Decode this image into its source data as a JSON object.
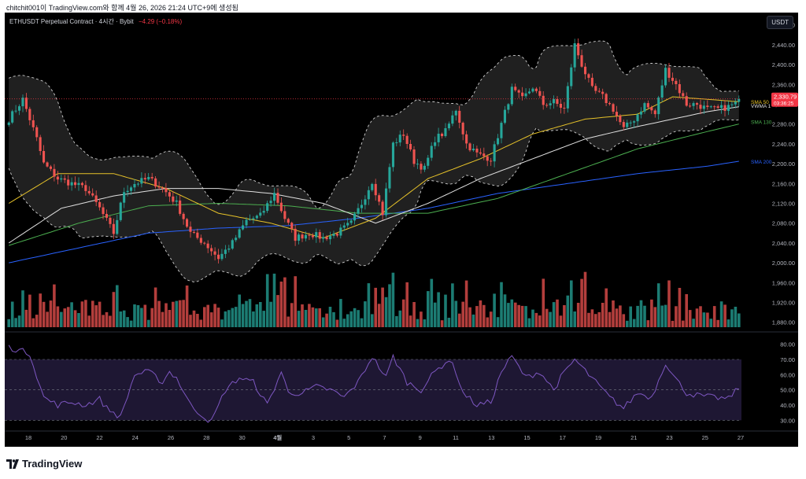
{
  "header": {
    "text": "chitchit001이 TradingView.com와 함께 4월 26, 2026 21:24 UTC+9에 생성됨"
  },
  "legend": {
    "symbol": "ETHUSDT Perpetual Contract · 4시간 · Bybit",
    "change": "−4.29 (−0.18%)"
  },
  "unit_button": "USDT",
  "footer": {
    "brand": "TradingView"
  },
  "colors": {
    "up": "#26a69a",
    "down": "#ef5350",
    "sma50": "#e6c229",
    "vwma": "#e0e0e0",
    "sma130": "#4caf50",
    "sma200": "#2962ff",
    "rsi": "#7e57c2",
    "bb": "#cfcfcf"
  },
  "chart_data": [
    {
      "type": "candlestick",
      "title": "ETHUSDT Perpetual Contract · 4시간 · Bybit",
      "x_tick_labels": [
        "18",
        "20",
        "22",
        "24",
        "26",
        "28",
        "30",
        "4월",
        "3",
        "5",
        "7",
        "9",
        "11",
        "13",
        "15",
        "17",
        "19",
        "21",
        "23",
        "25",
        "27"
      ],
      "y_tick_labels": [
        "1,880.00",
        "1,920.00",
        "1,960.00",
        "2,000.00",
        "2,040.00",
        "2,080.00",
        "2,120.00",
        "2,160.00",
        "2,200.00",
        "2,240.00",
        "2,280.00",
        "2,320.00",
        "2,360.00",
        "2,400.00",
        "2,440.00",
        "2,480.00"
      ],
      "ylim": [
        1870,
        2505
      ],
      "grid": false,
      "last_price_label": "2,330.79",
      "countdown_label": "03:36:25",
      "indicator_labels": [
        "SMA 50",
        "VWMA 1",
        "SMA 130",
        "SMA 200"
      ],
      "close_keypoints": [
        [
          0,
          2290
        ],
        [
          4,
          2330
        ],
        [
          8,
          2250
        ],
        [
          10,
          2200
        ],
        [
          14,
          2170
        ],
        [
          18,
          2160
        ],
        [
          22,
          2150
        ],
        [
          26,
          2110
        ],
        [
          30,
          2060
        ],
        [
          33,
          2145
        ],
        [
          36,
          2160
        ],
        [
          40,
          2170
        ],
        [
          44,
          2150
        ],
        [
          48,
          2120
        ],
        [
          52,
          2060
        ],
        [
          56,
          2040
        ],
        [
          60,
          2010
        ],
        [
          64,
          2040
        ],
        [
          68,
          2085
        ],
        [
          72,
          2095
        ],
        [
          76,
          2140
        ],
        [
          79,
          2090
        ],
        [
          82,
          2050
        ],
        [
          86,
          2060
        ],
        [
          90,
          2050
        ],
        [
          94,
          2060
        ],
        [
          98,
          2080
        ],
        [
          101,
          2120
        ],
        [
          104,
          2165
        ],
        [
          107,
          2100
        ],
        [
          110,
          2240
        ],
        [
          113,
          2260
        ],
        [
          116,
          2205
        ],
        [
          119,
          2190
        ],
        [
          122,
          2250
        ],
        [
          125,
          2265
        ],
        [
          128,
          2310
        ],
        [
          131,
          2240
        ],
        [
          134,
          2220
        ],
        [
          138,
          2210
        ],
        [
          141,
          2280
        ],
        [
          144,
          2350
        ],
        [
          147,
          2330
        ],
        [
          150,
          2355
        ],
        [
          153,
          2320
        ],
        [
          156,
          2325
        ],
        [
          159,
          2310
        ],
        [
          162,
          2440
        ],
        [
          164,
          2400
        ],
        [
          167,
          2350
        ],
        [
          170,
          2335
        ],
        [
          173,
          2310
        ],
        [
          176,
          2270
        ],
        [
          179,
          2290
        ],
        [
          182,
          2320
        ],
        [
          185,
          2300
        ],
        [
          188,
          2390
        ],
        [
          191,
          2360
        ],
        [
          194,
          2320
        ],
        [
          197,
          2320
        ],
        [
          200,
          2310
        ],
        [
          203,
          2310
        ],
        [
          206,
          2315
        ],
        [
          209,
          2325
        ]
      ],
      "sma50_keypoints": [
        [
          0,
          2120
        ],
        [
          14,
          2180
        ],
        [
          30,
          2180
        ],
        [
          45,
          2150
        ],
        [
          60,
          2100
        ],
        [
          75,
          2080
        ],
        [
          90,
          2050
        ],
        [
          105,
          2090
        ],
        [
          120,
          2170
        ],
        [
          135,
          2210
        ],
        [
          150,
          2260
        ],
        [
          165,
          2290
        ],
        [
          180,
          2300
        ],
        [
          190,
          2335
        ],
        [
          200,
          2330
        ],
        [
          209,
          2325
        ]
      ],
      "vwma_keypoints": [
        [
          0,
          2040
        ],
        [
          15,
          2110
        ],
        [
          30,
          2135
        ],
        [
          45,
          2150
        ],
        [
          60,
          2150
        ],
        [
          75,
          2140
        ],
        [
          90,
          2120
        ],
        [
          105,
          2080
        ],
        [
          120,
          2120
        ],
        [
          135,
          2170
        ],
        [
          150,
          2210
        ],
        [
          165,
          2250
        ],
        [
          180,
          2275
        ],
        [
          190,
          2290
        ],
        [
          200,
          2305
        ],
        [
          209,
          2315
        ]
      ],
      "sma130_keypoints": [
        [
          0,
          2035
        ],
        [
          20,
          2080
        ],
        [
          40,
          2115
        ],
        [
          60,
          2120
        ],
        [
          80,
          2115
        ],
        [
          100,
          2100
        ],
        [
          120,
          2100
        ],
        [
          140,
          2130
        ],
        [
          160,
          2180
        ],
        [
          180,
          2230
        ],
        [
          200,
          2265
        ],
        [
          209,
          2280
        ]
      ],
      "sma200_keypoints": [
        [
          0,
          2000
        ],
        [
          20,
          2030
        ],
        [
          40,
          2060
        ],
        [
          60,
          2070
        ],
        [
          80,
          2075
        ],
        [
          100,
          2090
        ],
        [
          120,
          2110
        ],
        [
          140,
          2140
        ],
        [
          160,
          2160
        ],
        [
          180,
          2180
        ],
        [
          200,
          2195
        ],
        [
          209,
          2205
        ]
      ]
    },
    {
      "type": "bar",
      "title": "Volume",
      "note": "volume histogram below price"
    },
    {
      "type": "line",
      "title": "RSI",
      "y_tick_labels": [
        "30.00",
        "40.00",
        "50.00",
        "60.00",
        "70.00",
        "80.00"
      ],
      "ylim": [
        25,
        85
      ],
      "bands": [
        30,
        50,
        70
      ],
      "rsi_keypoints": [
        [
          0,
          78
        ],
        [
          6,
          74
        ],
        [
          10,
          45
        ],
        [
          14,
          40
        ],
        [
          18,
          42
        ],
        [
          22,
          40
        ],
        [
          26,
          44
        ],
        [
          28,
          38
        ],
        [
          32,
          32
        ],
        [
          36,
          60
        ],
        [
          40,
          62
        ],
        [
          44,
          55
        ],
        [
          46,
          62
        ],
        [
          48,
          58
        ],
        [
          52,
          40
        ],
        [
          56,
          32
        ],
        [
          58,
          29
        ],
        [
          62,
          50
        ],
        [
          66,
          58
        ],
        [
          70,
          55
        ],
        [
          74,
          40
        ],
        [
          78,
          62
        ],
        [
          80,
          48
        ],
        [
          84,
          48
        ],
        [
          88,
          52
        ],
        [
          92,
          50
        ],
        [
          96,
          45
        ],
        [
          100,
          55
        ],
        [
          104,
          72
        ],
        [
          108,
          58
        ],
        [
          110,
          72
        ],
        [
          114,
          55
        ],
        [
          118,
          50
        ],
        [
          122,
          62
        ],
        [
          126,
          70
        ],
        [
          128,
          62
        ],
        [
          130,
          48
        ],
        [
          134,
          40
        ],
        [
          138,
          42
        ],
        [
          141,
          62
        ],
        [
          144,
          72
        ],
        [
          148,
          58
        ],
        [
          152,
          62
        ],
        [
          156,
          50
        ],
        [
          158,
          58
        ],
        [
          162,
          70
        ],
        [
          164,
          65
        ],
        [
          168,
          55
        ],
        [
          172,
          45
        ],
        [
          176,
          38
        ],
        [
          180,
          48
        ],
        [
          184,
          45
        ],
        [
          188,
          68
        ],
        [
          190,
          60
        ],
        [
          194,
          48
        ],
        [
          198,
          46
        ],
        [
          202,
          45
        ],
        [
          206,
          44
        ],
        [
          209,
          52
        ]
      ]
    }
  ]
}
